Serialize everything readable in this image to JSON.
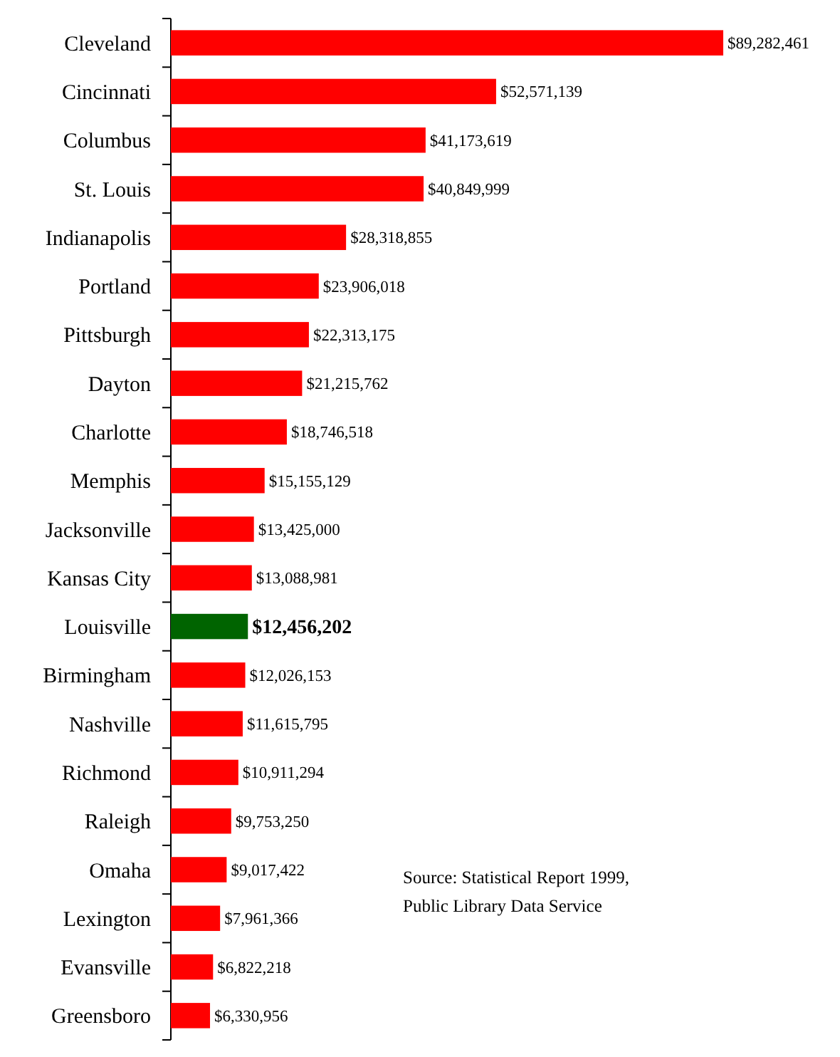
{
  "chart_data": {
    "type": "bar",
    "orientation": "horizontal",
    "categories": [
      "Cleveland",
      "Cincinnati",
      "Columbus",
      "St. Louis",
      "Indianapolis",
      "Portland",
      "Pittsburgh",
      "Dayton",
      "Charlotte",
      "Memphis",
      "Jacksonville",
      "Kansas City",
      "Louisville",
      "Birmingham",
      "Nashville",
      "Richmond",
      "Raleigh",
      "Omaha",
      "Lexington",
      "Evansville",
      "Greensboro"
    ],
    "values": [
      89282461,
      52571139,
      41173619,
      40849999,
      28318855,
      23906018,
      22313175,
      21215762,
      18746518,
      15155129,
      13425000,
      13088981,
      12456202,
      12026153,
      11615795,
      10911294,
      9753250,
      9017422,
      7961366,
      6822218,
      6330956
    ],
    "colors": [
      "#ff0000",
      "#ff0000",
      "#ff0000",
      "#ff0000",
      "#ff0000",
      "#ff0000",
      "#ff0000",
      "#ff0000",
      "#ff0000",
      "#ff0000",
      "#ff0000",
      "#ff0000",
      "#006400",
      "#ff0000",
      "#ff0000",
      "#ff0000",
      "#ff0000",
      "#ff0000",
      "#ff0000",
      "#ff0000",
      "#ff0000"
    ],
    "value_labels": [
      "$89,282,461",
      "$52,571,139",
      "$41,173,619",
      "$40,849,999",
      "$28,318,855",
      "$23,906,018",
      "$22,313,175",
      "$21,215,762",
      "$18,746,518",
      "$15,155,129",
      "$13,425,000",
      "$13,088,981",
      "$12,456,202",
      "$12,026,153",
      "$11,615,795",
      "$10,911,294",
      "$9,753,250",
      "$9,017,422",
      "$7,961,366",
      "$6,822,218",
      "$6,330,956"
    ],
    "annotations": [
      "Source: Statistical Report 1999,\nPublic Library Data Service"
    ]
  }
}
